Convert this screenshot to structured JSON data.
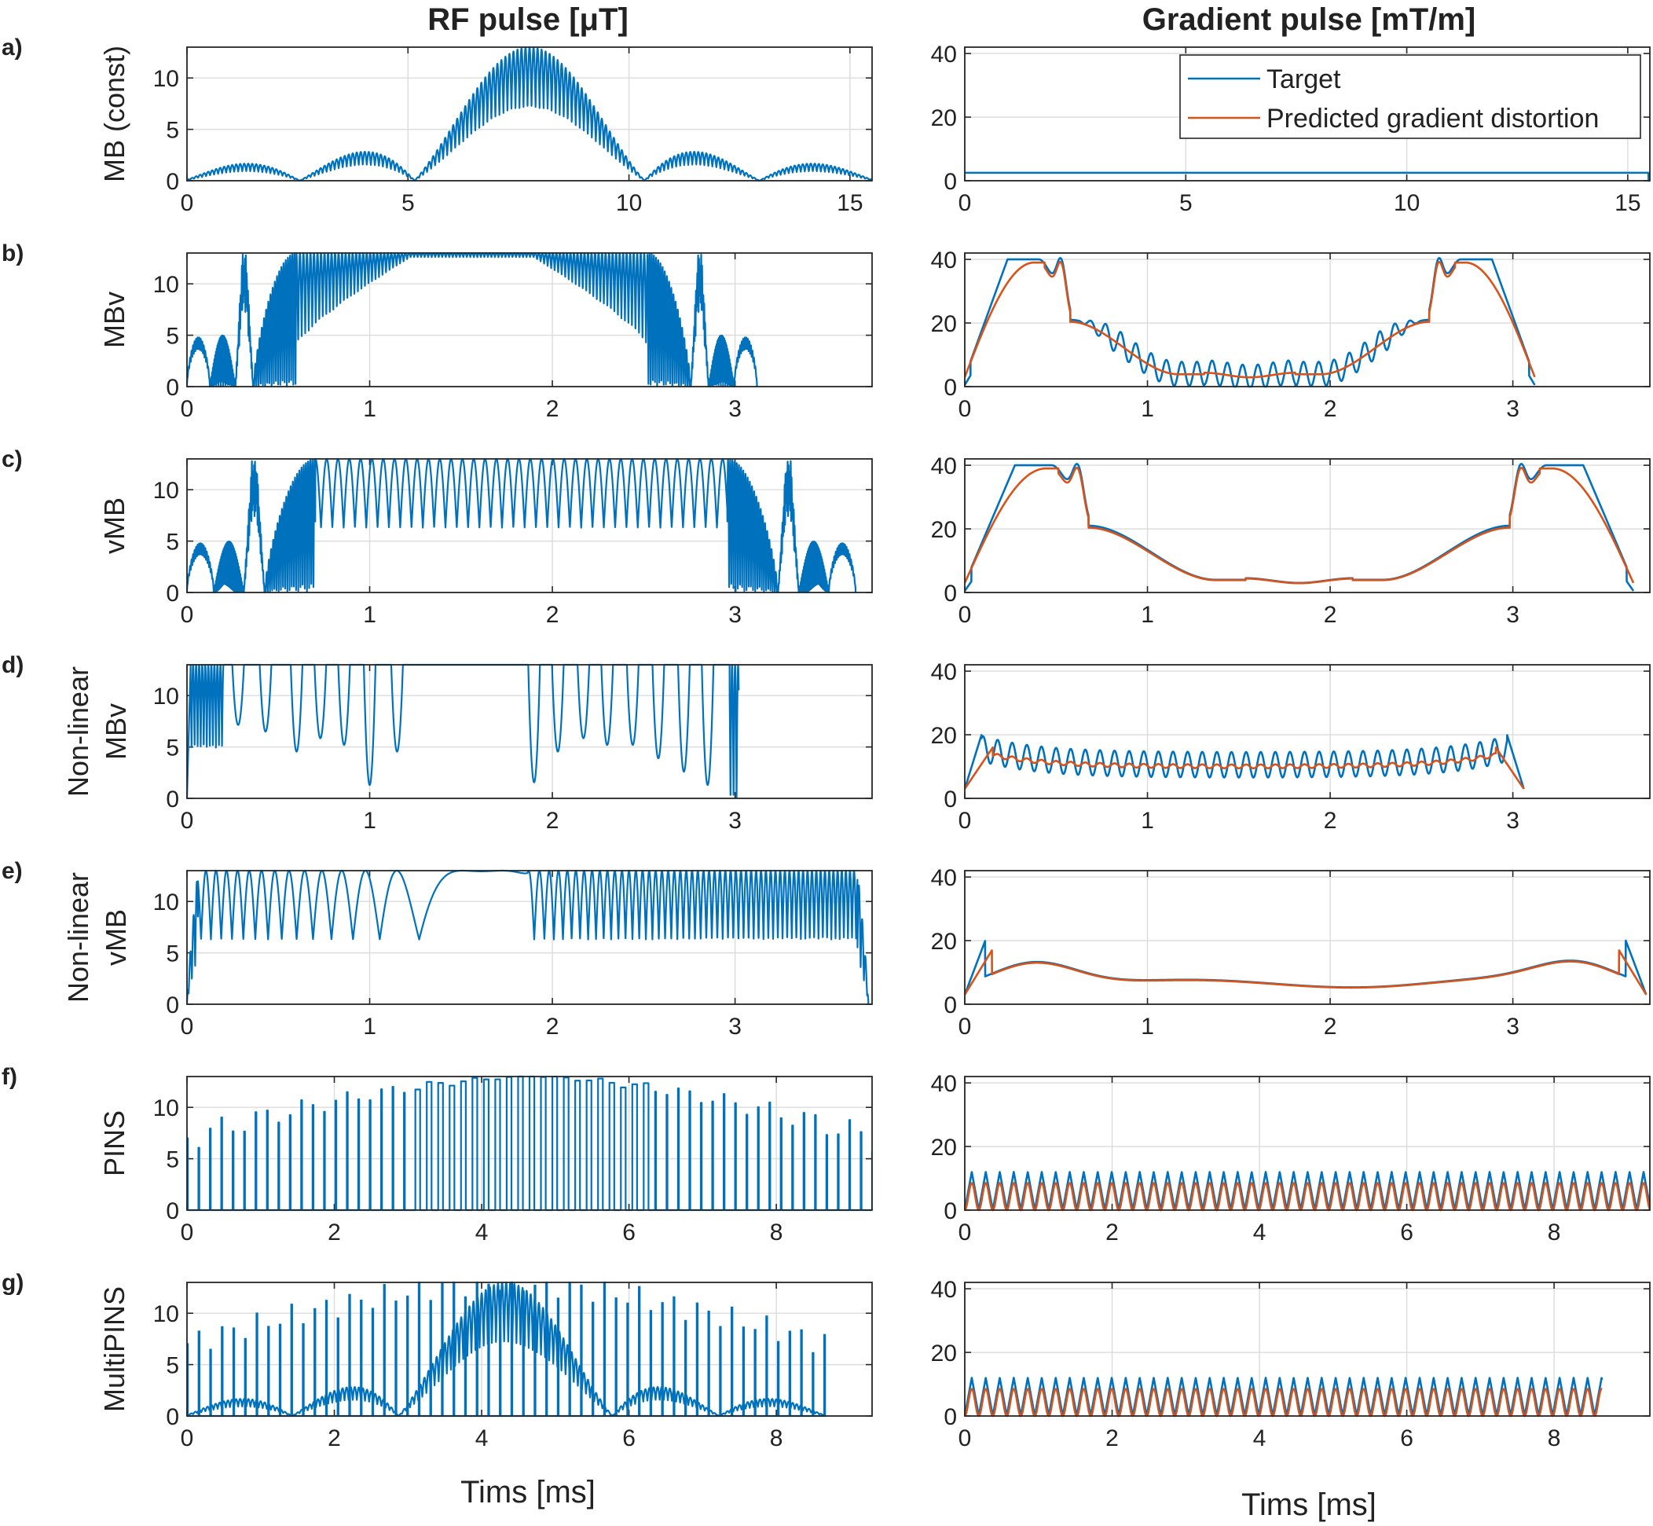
{
  "figure": {
    "left_title": "RF pulse [μT]",
    "right_title": "Gradient pulse [mT/m]",
    "left_xlabel": "Tims [ms]",
    "right_xlabel": "Tims [ms]",
    "legend": [
      "Target",
      "Predicted gradient distortion"
    ],
    "colors": {
      "target": "#0072BD",
      "predicted": "#D95319",
      "axis": "#262626",
      "grid": "#dcdcdc"
    }
  },
  "chart_data": [
    {
      "id": "a",
      "panel_label": "a)",
      "ylabel": [
        "MB (const)"
      ],
      "type": "line",
      "rf": {
        "xlim": [
          0,
          15.5
        ],
        "xticks": [
          0,
          5,
          10,
          15
        ],
        "ylim": [
          0,
          13
        ],
        "yticks": [
          0,
          5,
          10
        ],
        "duration": 15.5,
        "pattern": "mb_const"
      },
      "grad": {
        "xlim": [
          0,
          15.5
        ],
        "xticks": [
          0,
          5,
          10,
          15
        ],
        "ylim": [
          0,
          42
        ],
        "yticks": [
          0,
          20,
          40
        ],
        "duration": 15.5,
        "pattern": "const",
        "level": 2.5,
        "legend": true
      }
    },
    {
      "id": "b",
      "panel_label": "b)",
      "ylabel": [
        "MBv"
      ],
      "type": "line",
      "rf": {
        "xlim": [
          0,
          3.75
        ],
        "xticks": [
          0,
          1,
          2,
          3
        ],
        "ylim": [
          0,
          13
        ],
        "yticks": [
          0,
          5,
          10
        ],
        "duration": 3.12,
        "pattern": "vrate",
        "mid": "dense"
      },
      "grad": {
        "xlim": [
          0,
          3.75
        ],
        "xticks": [
          0,
          1,
          2,
          3
        ],
        "ylim": [
          0,
          42
        ],
        "yticks": [
          0,
          20,
          40
        ],
        "duration": 3.12,
        "pattern": "vgrad",
        "mid": "osc"
      }
    },
    {
      "id": "c",
      "panel_label": "c)",
      "ylabel": [
        "vMB"
      ],
      "type": "line",
      "rf": {
        "xlim": [
          0,
          3.75
        ],
        "xticks": [
          0,
          1,
          2,
          3
        ],
        "ylim": [
          0,
          13
        ],
        "yticks": [
          0,
          5,
          10
        ],
        "duration": 3.66,
        "pattern": "vrate",
        "mid": "sinus"
      },
      "grad": {
        "xlim": [
          0,
          3.75
        ],
        "xticks": [
          0,
          1,
          2,
          3
        ],
        "ylim": [
          0,
          42
        ],
        "yticks": [
          0,
          20,
          40
        ],
        "duration": 3.66,
        "pattern": "vgrad",
        "mid": "smooth"
      }
    },
    {
      "id": "d",
      "panel_label": "d)",
      "ylabel": [
        "Non-linear",
        "MBv"
      ],
      "type": "line",
      "rf": {
        "xlim": [
          0,
          3.75
        ],
        "xticks": [
          0,
          1,
          2,
          3
        ],
        "ylim": [
          0,
          13
        ],
        "yticks": [
          0,
          5,
          10
        ],
        "duration": 3.02,
        "pattern": "nl_mbv"
      },
      "grad": {
        "xlim": [
          0,
          3.75
        ],
        "xticks": [
          0,
          1,
          2,
          3
        ],
        "ylim": [
          0,
          42
        ],
        "yticks": [
          0,
          20,
          40
        ],
        "duration": 3.06,
        "pattern": "nl_grad_osc"
      }
    },
    {
      "id": "e",
      "panel_label": "e)",
      "ylabel": [
        "Non-linear",
        "vMB"
      ],
      "type": "line",
      "rf": {
        "xlim": [
          0,
          3.75
        ],
        "xticks": [
          0,
          1,
          2,
          3
        ],
        "ylim": [
          0,
          13
        ],
        "yticks": [
          0,
          5,
          10
        ],
        "duration": 3.73,
        "pattern": "nl_vmb"
      },
      "grad": {
        "xlim": [
          0,
          3.75
        ],
        "xticks": [
          0,
          1,
          2,
          3
        ],
        "ylim": [
          0,
          42
        ],
        "yticks": [
          0,
          20,
          40
        ],
        "duration": 3.73,
        "pattern": "nl_grad_smooth"
      }
    },
    {
      "id": "f",
      "panel_label": "f)",
      "ylabel": [
        "PINS"
      ],
      "type": "line",
      "rf": {
        "xlim": [
          0,
          9.3
        ],
        "xticks": [
          0,
          2,
          4,
          6,
          8
        ],
        "ylim": [
          0,
          13
        ],
        "yticks": [
          0,
          5,
          10
        ],
        "duration": 9.3,
        "pattern": "pins"
      },
      "grad": {
        "xlim": [
          0,
          9.3
        ],
        "xticks": [
          0,
          2,
          4,
          6,
          8
        ],
        "ylim": [
          0,
          42
        ],
        "yticks": [
          0,
          20,
          40
        ],
        "duration": 9.3,
        "pattern": "blips",
        "peak": 12,
        "pred_peak": 8.5
      }
    },
    {
      "id": "g",
      "panel_label": "g)",
      "ylabel": [
        "MultiPINS"
      ],
      "type": "line",
      "rf": {
        "xlim": [
          0,
          9.3
        ],
        "xticks": [
          0,
          2,
          4,
          6,
          8
        ],
        "ylim": [
          0,
          13
        ],
        "yticks": [
          0,
          5,
          10
        ],
        "duration": 8.65,
        "pattern": "multipins"
      },
      "grad": {
        "xlim": [
          0,
          9.3
        ],
        "xticks": [
          0,
          2,
          4,
          6,
          8
        ],
        "ylim": [
          0,
          42
        ],
        "yticks": [
          0,
          20,
          40
        ],
        "duration": 8.65,
        "pattern": "blips",
        "peak": 12,
        "pred_peak": 8.5
      }
    }
  ]
}
